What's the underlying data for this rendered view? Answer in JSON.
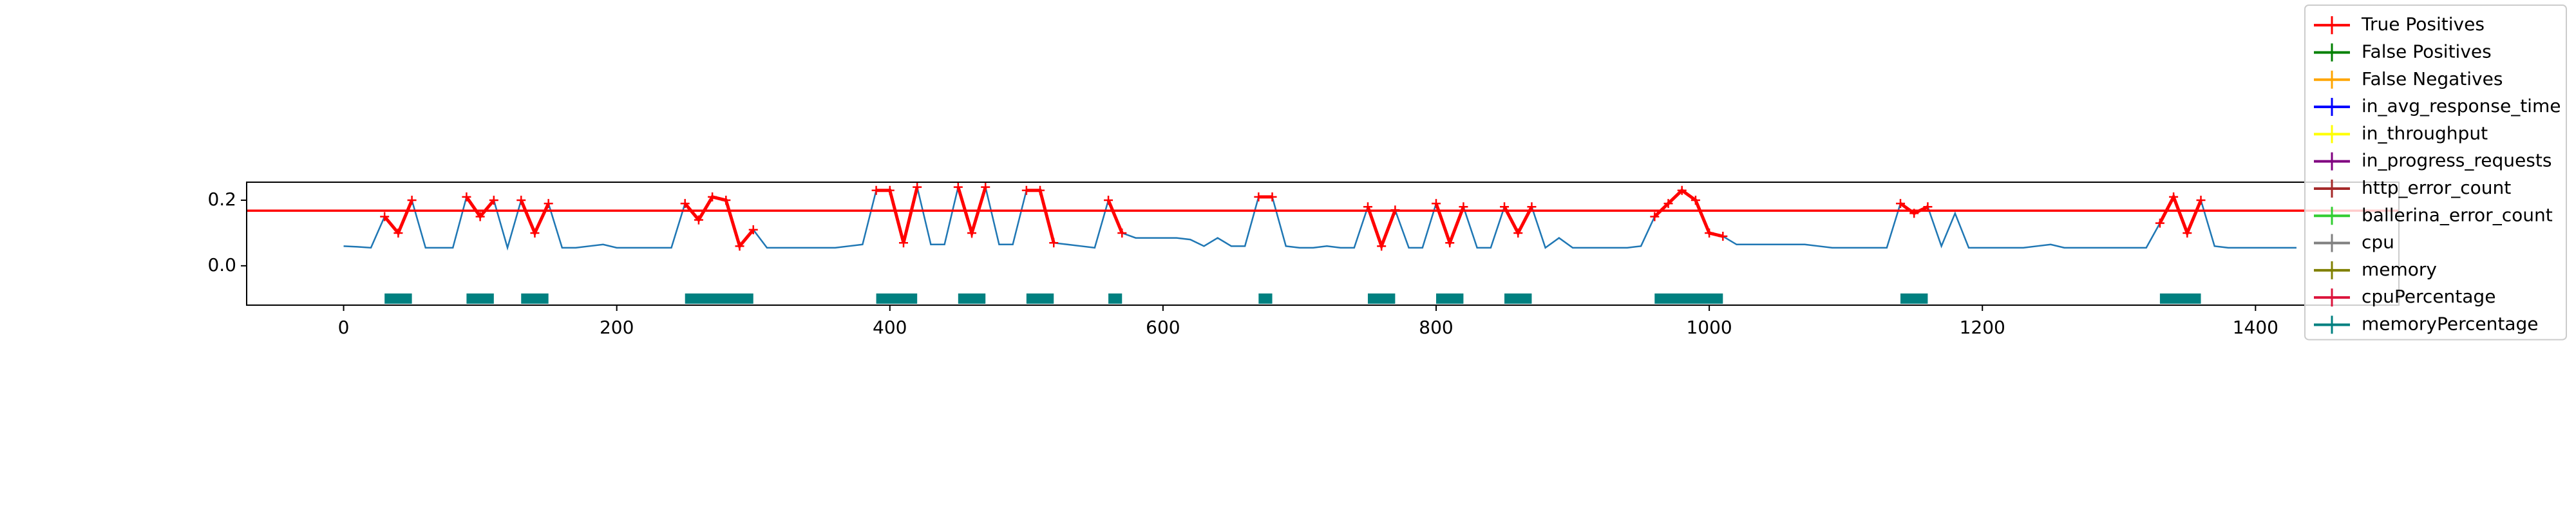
{
  "chart_data": {
    "type": "line",
    "x": [
      0,
      10,
      20,
      30,
      40,
      50,
      60,
      70,
      80,
      90,
      100,
      110,
      120,
      130,
      140,
      150,
      160,
      170,
      180,
      190,
      200,
      210,
      220,
      230,
      240,
      250,
      260,
      270,
      280,
      290,
      300,
      310,
      320,
      330,
      340,
      350,
      360,
      370,
      380,
      390,
      400,
      410,
      420,
      430,
      440,
      450,
      460,
      470,
      480,
      490,
      500,
      510,
      520,
      530,
      540,
      550,
      560,
      570,
      580,
      590,
      600,
      610,
      620,
      630,
      640,
      650,
      660,
      670,
      680,
      690,
      700,
      710,
      720,
      730,
      740,
      750,
      760,
      770,
      780,
      790,
      800,
      810,
      820,
      830,
      840,
      850,
      860,
      870,
      880,
      890,
      900,
      910,
      920,
      930,
      940,
      950,
      960,
      970,
      980,
      990,
      1000,
      1010,
      1020,
      1030,
      1040,
      1050,
      1060,
      1070,
      1080,
      1090,
      1100,
      1110,
      1120,
      1130,
      1140,
      1150,
      1160,
      1170,
      1180,
      1190,
      1200,
      1210,
      1220,
      1230,
      1240,
      1250,
      1260,
      1270,
      1280,
      1290,
      1300,
      1310,
      1320,
      1330,
      1340,
      1350,
      1360,
      1370,
      1380,
      1390,
      1400,
      1410,
      1420,
      1430
    ],
    "series": [
      {
        "color": "#1f77b4",
        "values": [
          0.06,
          0.058,
          0.055,
          0.15,
          0.1,
          0.2,
          0.055,
          0.055,
          0.055,
          0.21,
          0.15,
          0.2,
          0.055,
          0.2,
          0.1,
          0.19,
          0.055,
          0.055,
          0.06,
          0.065,
          0.055,
          0.055,
          0.055,
          0.055,
          0.055,
          0.19,
          0.14,
          0.21,
          0.2,
          0.06,
          0.11,
          0.055,
          0.055,
          0.055,
          0.055,
          0.055,
          0.055,
          0.06,
          0.065,
          0.23,
          0.23,
          0.07,
          0.24,
          0.065,
          0.065,
          0.24,
          0.1,
          0.24,
          0.065,
          0.065,
          0.23,
          0.23,
          0.07,
          0.065,
          0.06,
          0.055,
          0.2,
          0.1,
          0.085,
          0.085,
          0.085,
          0.085,
          0.08,
          0.06,
          0.085,
          0.06,
          0.06,
          0.21,
          0.21,
          0.06,
          0.055,
          0.055,
          0.06,
          0.055,
          0.055,
          0.18,
          0.06,
          0.17,
          0.055,
          0.055,
          0.19,
          0.07,
          0.18,
          0.055,
          0.055,
          0.18,
          0.1,
          0.18,
          0.055,
          0.085,
          0.055,
          0.055,
          0.055,
          0.055,
          0.055,
          0.06,
          0.15,
          0.19,
          0.23,
          0.2,
          0.1,
          0.09,
          0.065,
          0.065,
          0.065,
          0.065,
          0.065,
          0.065,
          0.06,
          0.055,
          0.055,
          0.055,
          0.055,
          0.055,
          0.19,
          0.16,
          0.18,
          0.06,
          0.16,
          0.055,
          0.055,
          0.055,
          0.055,
          0.055,
          0.06,
          0.065,
          0.055,
          0.055,
          0.055,
          0.055,
          0.055,
          0.055,
          0.055,
          0.13,
          0.21,
          0.1,
          0.2,
          0.06,
          0.055,
          0.055,
          0.055,
          0.055,
          0.055,
          0.055
        ]
      },
      {
        "name": "True Positives",
        "color": "#ff0000",
        "values": [
          null,
          null,
          null,
          0.15,
          0.1,
          0.2,
          null,
          null,
          null,
          0.21,
          0.15,
          0.2,
          null,
          0.2,
          0.1,
          0.19,
          null,
          null,
          null,
          null,
          null,
          null,
          null,
          null,
          null,
          0.19,
          0.14,
          0.21,
          0.2,
          0.06,
          0.11,
          null,
          null,
          null,
          null,
          null,
          null,
          null,
          null,
          0.23,
          0.23,
          0.07,
          0.24,
          null,
          null,
          0.24,
          0.1,
          0.24,
          null,
          null,
          0.23,
          0.23,
          0.07,
          null,
          null,
          null,
          0.2,
          0.1,
          null,
          null,
          null,
          null,
          null,
          null,
          null,
          null,
          null,
          0.21,
          0.21,
          null,
          null,
          null,
          null,
          null,
          null,
          0.18,
          0.06,
          0.17,
          null,
          null,
          0.19,
          0.07,
          0.18,
          null,
          null,
          0.18,
          0.1,
          0.18,
          null,
          null,
          null,
          null,
          null,
          null,
          null,
          null,
          0.15,
          0.19,
          0.23,
          0.2,
          0.1,
          0.09,
          null,
          null,
          null,
          null,
          null,
          null,
          null,
          null,
          null,
          null,
          null,
          null,
          0.19,
          0.16,
          0.18,
          null,
          null,
          null,
          null,
          null,
          null,
          null,
          null,
          null,
          null,
          null,
          null,
          null,
          null,
          null,
          null,
          0.13,
          0.21,
          0.1,
          0.2,
          null,
          null,
          null,
          null,
          null,
          null,
          null
        ]
      },
      {
        "name": "False Positives",
        "color": "#008000"
      },
      {
        "name": "False Negatives",
        "color": "#ffa500"
      },
      {
        "name": "in_avg_response_time",
        "color": "#0000ff"
      },
      {
        "name": "in_throughput",
        "color": "#ffff00"
      },
      {
        "name": "in_progress_requests",
        "color": "#800080"
      },
      {
        "name": "http_error_count",
        "color": "#a52a2a"
      },
      {
        "name": "ballerina_error_count",
        "color": "#32cd32"
      },
      {
        "name": "cpu",
        "color": "#808080"
      },
      {
        "name": "memory",
        "color": "#808000"
      },
      {
        "name": "cpuPercentage",
        "color": "#dc143c"
      },
      {
        "name": "memoryPercentage",
        "color": "#008080",
        "values": [
          null,
          null,
          null,
          -0.1,
          -0.1,
          -0.1,
          null,
          null,
          null,
          -0.1,
          -0.1,
          -0.1,
          null,
          -0.1,
          -0.1,
          -0.1,
          null,
          null,
          null,
          null,
          null,
          null,
          null,
          null,
          null,
          -0.1,
          -0.1,
          -0.1,
          -0.1,
          -0.1,
          -0.1,
          null,
          null,
          null,
          null,
          null,
          null,
          null,
          null,
          -0.1,
          -0.1,
          -0.1,
          -0.1,
          null,
          null,
          -0.1,
          -0.1,
          -0.1,
          null,
          null,
          -0.1,
          -0.1,
          -0.1,
          null,
          null,
          null,
          -0.1,
          -0.1,
          null,
          null,
          null,
          null,
          null,
          null,
          null,
          null,
          null,
          -0.1,
          -0.1,
          null,
          null,
          null,
          null,
          null,
          null,
          -0.1,
          -0.1,
          -0.1,
          null,
          null,
          -0.1,
          -0.1,
          -0.1,
          null,
          null,
          -0.1,
          -0.1,
          -0.1,
          null,
          null,
          null,
          null,
          null,
          null,
          null,
          null,
          -0.1,
          -0.1,
          -0.1,
          -0.1,
          -0.1,
          -0.1,
          null,
          null,
          null,
          null,
          null,
          null,
          null,
          null,
          null,
          null,
          null,
          null,
          -0.1,
          -0.1,
          -0.1,
          null,
          null,
          null,
          null,
          null,
          null,
          null,
          null,
          null,
          null,
          null,
          null,
          null,
          null,
          null,
          null,
          -0.1,
          -0.1,
          -0.1,
          -0.1,
          null,
          null,
          null,
          null,
          null,
          null,
          null
        ]
      }
    ],
    "hline": 0.168,
    "hline_color": "#ff0000",
    "xlim": [
      -71,
      1505
    ],
    "ylim": [
      -0.12,
      0.255
    ],
    "xticks": [
      0,
      200,
      400,
      600,
      800,
      1000,
      1200,
      1400
    ],
    "yticks": [
      {
        "value": 0,
        "label": "0.0"
      },
      {
        "value": 0.2,
        "label": "0.2"
      }
    ],
    "legend": "upper right"
  }
}
